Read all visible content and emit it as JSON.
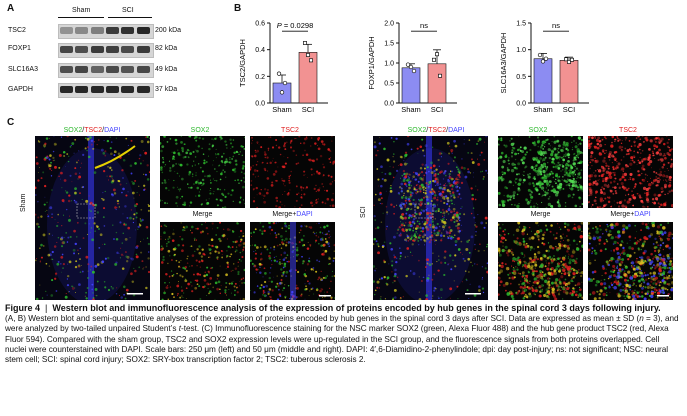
{
  "panels": {
    "a": "A",
    "b": "B",
    "c": "C"
  },
  "western_blot": {
    "groups": [
      "Sham",
      "SCI"
    ],
    "rows": [
      {
        "protein": "TSC2",
        "kda": "200 kDa"
      },
      {
        "protein": "FOXP1",
        "kda": "82 kDa"
      },
      {
        "protein": "SLC16A3",
        "kda": "49 kDa"
      },
      {
        "protein": "GAPDH",
        "kda": "37 kDa"
      }
    ]
  },
  "chart_data": [
    {
      "type": "bar",
      "ylabel": "TSC2/GAPDH",
      "categories": [
        "Sham",
        "SCI"
      ],
      "values": [
        0.15,
        0.38
      ],
      "errors": [
        0.06,
        0.06
      ],
      "points": [
        [
          0.22,
          0.08,
          0.15
        ],
        [
          0.45,
          0.36,
          0.32
        ]
      ],
      "ylim": [
        0,
        0.6
      ],
      "yticks": [
        "0.0",
        "0.2",
        "0.4",
        "0.6"
      ],
      "annotation": "P = 0.0298",
      "colors": [
        "#8c8cf2",
        "#f29292"
      ]
    },
    {
      "type": "bar",
      "ylabel": "FOXP1/GAPDH",
      "categories": [
        "Sham",
        "SCI"
      ],
      "values": [
        0.88,
        0.98
      ],
      "errors": [
        0.1,
        0.35
      ],
      "points": [
        [
          0.96,
          0.9,
          0.8
        ],
        [
          1.08,
          1.22,
          0.68
        ]
      ],
      "ylim": [
        0,
        2.0
      ],
      "yticks": [
        "0.0",
        "0.5",
        "1.0",
        "1.5",
        "2.0"
      ],
      "annotation": "ns",
      "colors": [
        "#8c8cf2",
        "#f29292"
      ]
    },
    {
      "type": "bar",
      "ylabel": "SLC16A3/GAPDH",
      "categories": [
        "Sham",
        "SCI"
      ],
      "values": [
        0.83,
        0.8
      ],
      "errors": [
        0.1,
        0.06
      ],
      "points": [
        [
          0.9,
          0.78,
          0.83
        ],
        [
          0.82,
          0.77,
          0.81
        ]
      ],
      "ylim": [
        0,
        1.5
      ],
      "yticks": [
        "0.0",
        "0.5",
        "1.0",
        "1.5"
      ],
      "annotation": "ns",
      "colors": [
        "#8c8cf2",
        "#f29292"
      ]
    }
  ],
  "if": {
    "overview_label_html_parts": [
      "SOX2",
      "/",
      "TSC2",
      "/",
      "DAPI"
    ],
    "sham_label": "Sham",
    "sci_label": "SCI",
    "titles": {
      "sox2": "SOX2",
      "tsc2": "TSC2",
      "merge": "Merge",
      "merge_dapi": "Merge+",
      "dapi": "DAPI"
    },
    "scale_text": "250 μm"
  },
  "caption": {
    "figure_label": "Figure 4",
    "separator": "|",
    "title": "Western blot and immunofluorescence analysis of the expression of proteins encoded by hub genes in the spinal cord 3 days following injury.",
    "body_1": "(A, B) Western blot and semi-quantitative analyses of the expression of proteins encoded by hub genes in the spinal cord 3 days after SCI. Data are expressed as mean ± SD (",
    "n_italic": "n",
    "body_2": " = 3), and were analyzed by two-tailed unpaired Student’s ",
    "t_italic": "t",
    "body_3": "-test. (C) Immunofluorescence staining for the NSC marker SOX2 (green, Alexa Fluor 488) and the hub gene product TSC2 (red, Alexa Fluor 594). Compared with the sham group, TSC2 and SOX2 expression levels were up-regulated in the SCI group, and the fluorescence signals from both proteins overlapped. Cell nuclei were counterstained with DAPI. Scale bars: 250 μm (left) and 50 μm (middle and right). DAPI: 4′,6-Diamidino-2-phenylindole; dpi: day post-injury; ns: not significant; NSC: neural stem cell; SCI: spinal cord injury; SOX2: SRY-box transcription factor 2; TSC2: tuberous sclerosis 2."
  },
  "colors": {
    "green": "#2db82d",
    "red": "#e02020",
    "blue": "#4444ff",
    "sham_bar": "#8c8cf2",
    "sci_bar": "#f29292"
  }
}
